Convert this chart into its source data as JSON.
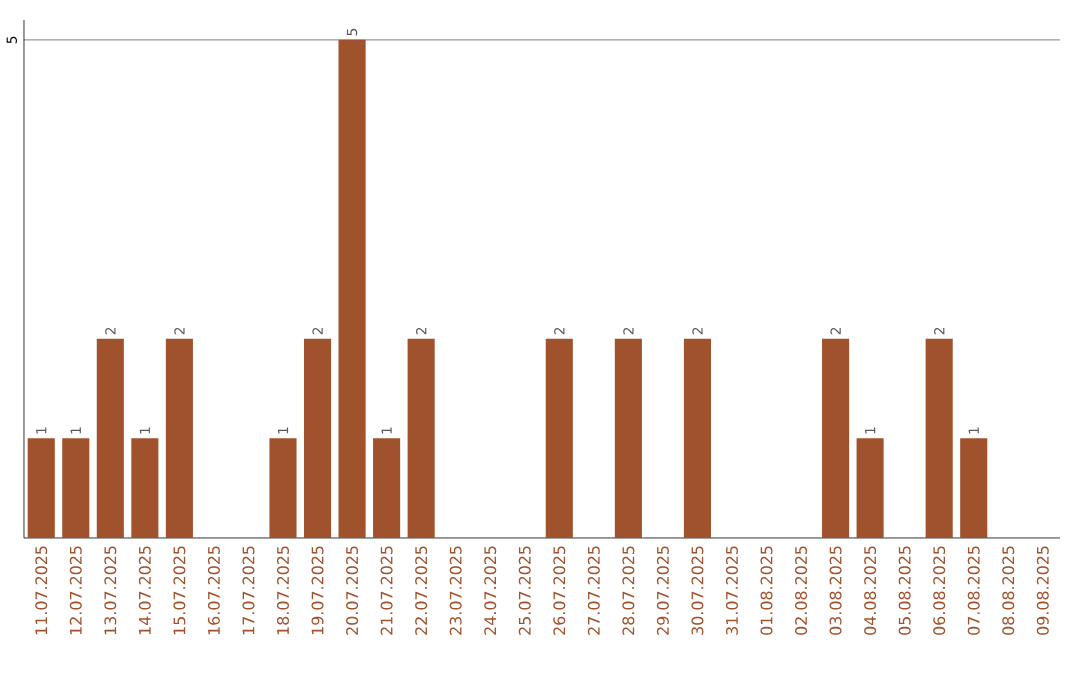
{
  "chart_data": {
    "type": "bar",
    "categories": [
      "11.07.2025",
      "12.07.2025",
      "13.07.2025",
      "14.07.2025",
      "15.07.2025",
      "16.07.2025",
      "17.07.2025",
      "18.07.2025",
      "19.07.2025",
      "20.07.2025",
      "21.07.2025",
      "22.07.2025",
      "23.07.2025",
      "24.07.2025",
      "25.07.2025",
      "26.07.2025",
      "27.07.2025",
      "28.07.2025",
      "29.07.2025",
      "30.07.2025",
      "31.07.2025",
      "01.08.2025",
      "02.08.2025",
      "03.08.2025",
      "04.08.2025",
      "05.08.2025",
      "06.08.2025",
      "07.08.2025",
      "08.08.2025",
      "09.08.2025"
    ],
    "values": [
      1,
      1,
      2,
      1,
      2,
      0,
      0,
      1,
      2,
      5,
      1,
      2,
      0,
      0,
      0,
      2,
      0,
      2,
      0,
      2,
      0,
      0,
      0,
      2,
      1,
      0,
      2,
      1,
      0,
      0
    ],
    "value_labels": [
      "1",
      "1",
      "2",
      "1",
      "2",
      null,
      null,
      "1",
      "2",
      "5",
      "1",
      "2",
      null,
      null,
      null,
      "2",
      null,
      "2",
      null,
      "2",
      null,
      null,
      null,
      "2",
      "1",
      null,
      "2",
      "1",
      null,
      null
    ],
    "color": "#a0522d",
    "ylim": [
      0,
      5.2
    ],
    "yticks": [
      5
    ],
    "grid": "y"
  }
}
